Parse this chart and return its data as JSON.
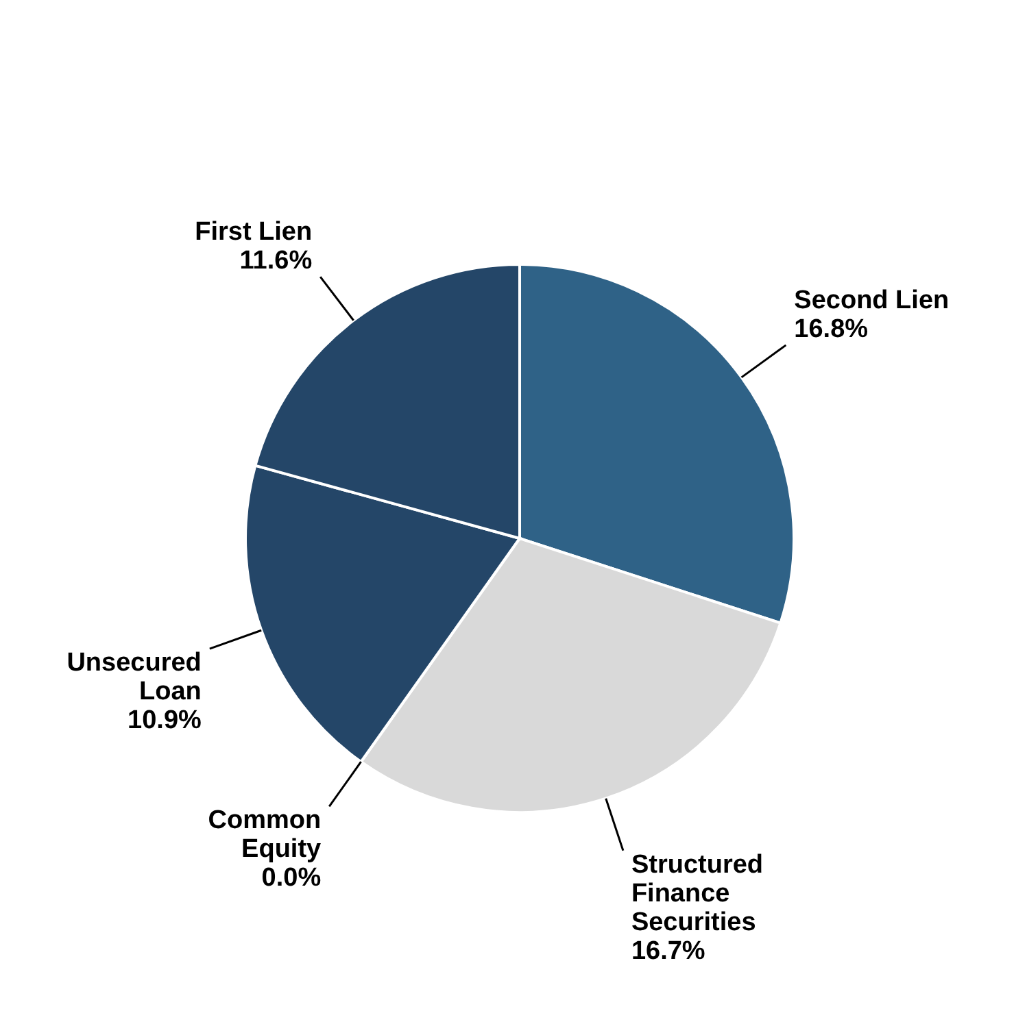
{
  "chart_data": {
    "type": "pie",
    "categories": [
      "Second Lien",
      "Structured Finance Securities",
      "Common Equity",
      "Unsecured Loan",
      "First Lien"
    ],
    "values": [
      16.8,
      16.7,
      0.0,
      10.9,
      11.6
    ],
    "colors": [
      "#2f6287",
      "#d9d9d9",
      "#bdd3e1",
      "#244668",
      "#244668"
    ],
    "value_labels": [
      "16.8%",
      "16.7%",
      "0.0%",
      "10.9%",
      "11.6%"
    ]
  }
}
